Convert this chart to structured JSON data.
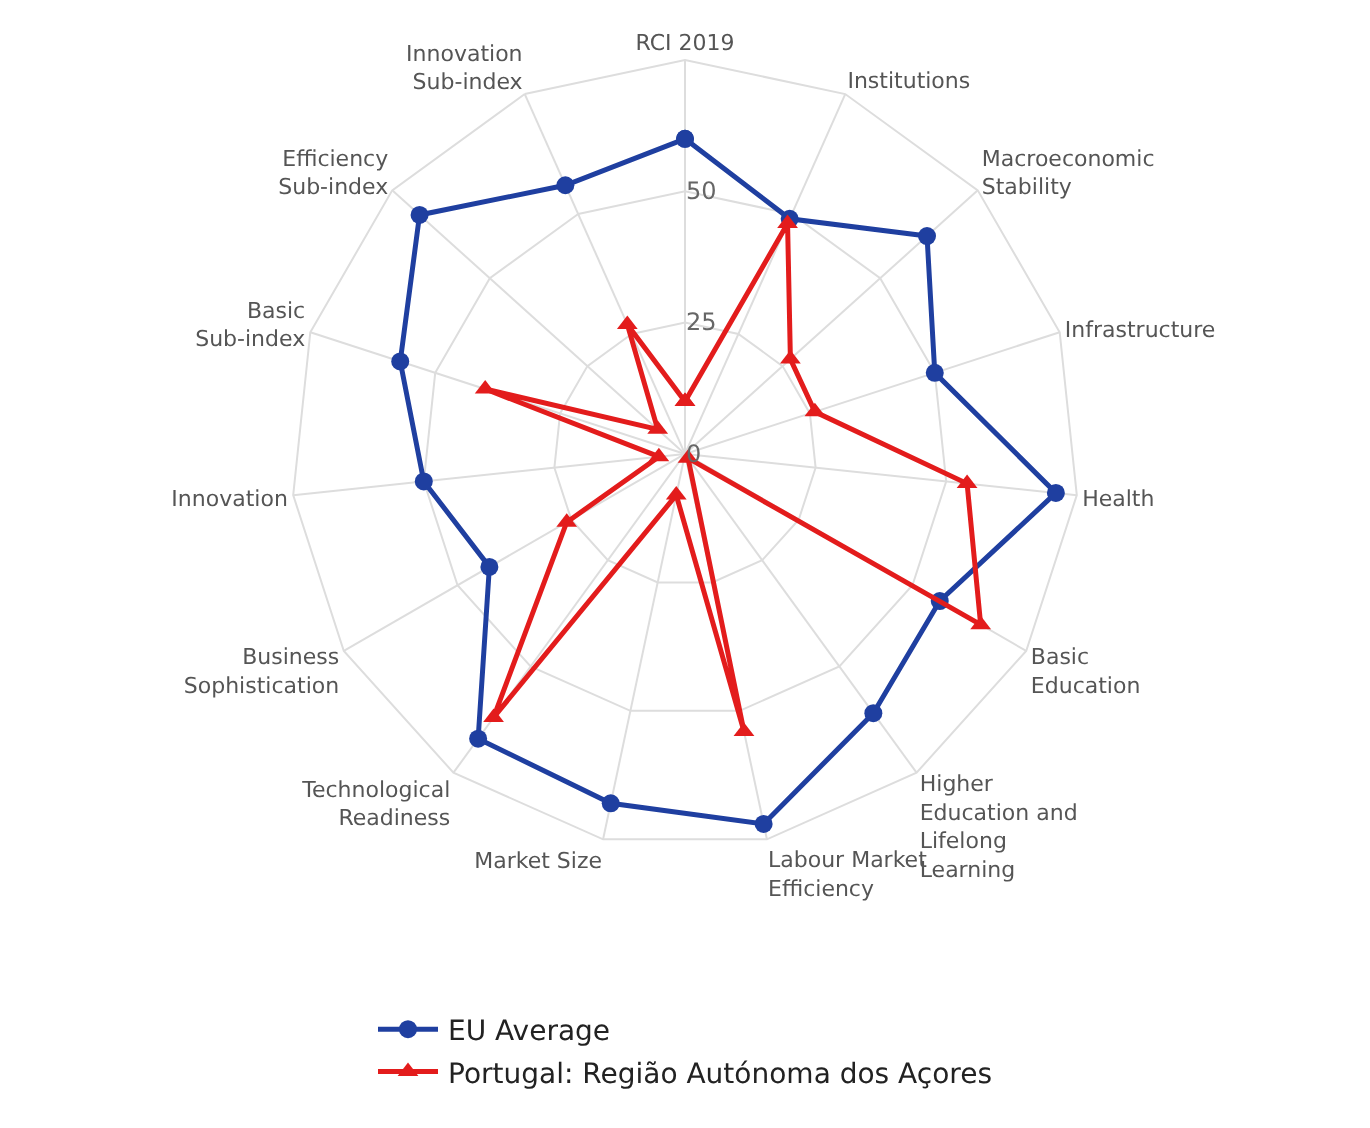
{
  "chart_data": {
    "type": "radar",
    "categories": [
      "RCI 2019",
      "Institutions",
      "Macroeconomic Stability",
      "Infrastructure",
      "Health",
      "Basic Education",
      "Higher Education and Lifelong Learning",
      "Labour Market Efficiency",
      "Market Size",
      "Technological Readiness",
      "Business Sophistication",
      "Innovation",
      "Basic Sub-index",
      "Efficiency Sub-index",
      "Innovation Sub-index"
    ],
    "series": [
      {
        "name": "EU Average",
        "color": "#1f3fa0",
        "marker": "circle",
        "values": [
          60,
          49,
          62,
          50,
          71,
          56,
          61,
          72,
          68,
          67,
          43,
          50,
          57,
          68,
          56
        ]
      },
      {
        "name": "Portugal: Região Autónoma dos Açores",
        "color": "#e31c1c",
        "marker": "triangle",
        "values": [
          10,
          48,
          27,
          26,
          54,
          65,
          1,
          54,
          8,
          62,
          26,
          5,
          40,
          7,
          27
        ]
      }
    ],
    "ylim": [
      0,
      75
    ],
    "yticks": [
      0,
      25,
      50
    ],
    "grid": true,
    "legend": "bottom",
    "line_style": "solid"
  }
}
